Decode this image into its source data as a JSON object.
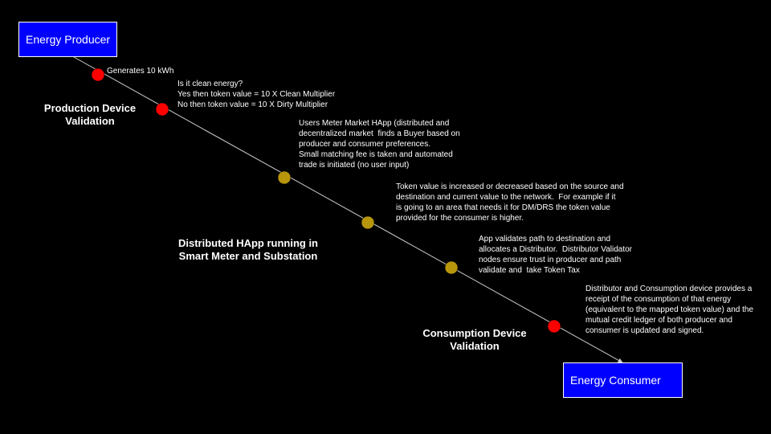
{
  "colors": {
    "background": "#000000",
    "box_fill": "#0000ff",
    "box_border": "#ffffff",
    "line": "#cccccc",
    "red_node": "#ff0000",
    "gold_node": "#b8960c",
    "text": "#ffffff"
  },
  "nodes": {
    "producer": "Energy Producer",
    "consumer": "Energy Consumer"
  },
  "steps": [
    {
      "type": "red",
      "text": "Generates 10 kWh"
    },
    {
      "type": "red",
      "text": "Is it clean energy?\nYes then token value = 10 X Clean Multiplier\nNo then token value = 10 X Dirty Multiplier"
    },
    {
      "type": "gold",
      "text": "Users Meter Market HApp (distributed and\ndecentralized market  finds a Buyer based on\nproducer and consumer preferences.\nSmall matching fee is taken and automated\ntrade is initiated (no user input)"
    },
    {
      "type": "gold",
      "text": "Token value is increased or decreased based on the source and\ndestination and current value to the network.  For example if it\nis going to an area that needs it for DM/DRS the token value\nprovided for the consumer is higher."
    },
    {
      "type": "gold",
      "text": "App validates path to destination and\nallocates a Distributor.  Distributor Validator\nnodes ensure trust in producer and path\nvalidate and  take Token Tax"
    },
    {
      "type": "red",
      "text": "Distributor and Consumption device provides a\nreceipt of the consumption of that energy\n(equivalent to the mapped token value) and the\nmutual credit ledger of both producer and\nconsumer is updated and signed."
    }
  ],
  "stages": {
    "production": "Production Device\nValidation",
    "distributed": "Distributed HApp running in\nSmart Meter and Substation",
    "consumption": "Consumption Device\nValidation"
  }
}
